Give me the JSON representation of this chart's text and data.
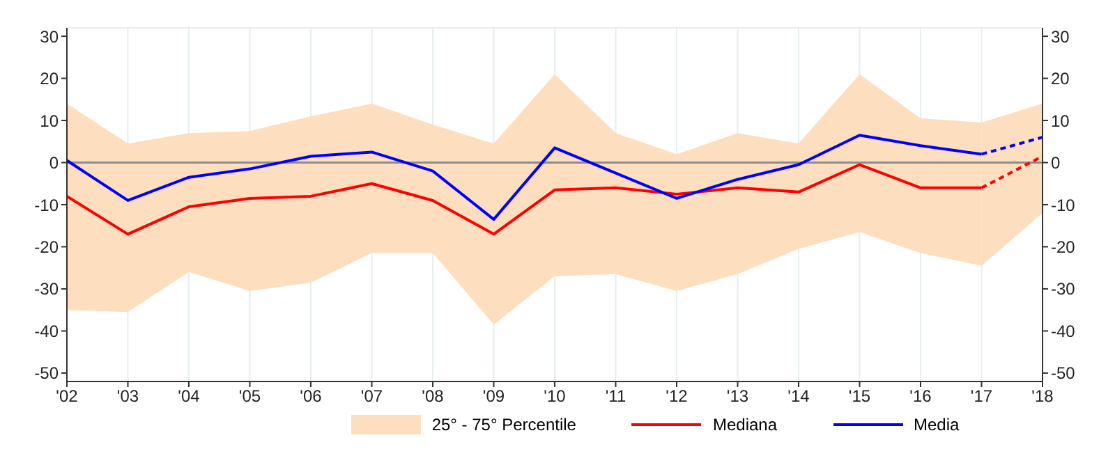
{
  "chart_data": {
    "type": "line",
    "categories": [
      "'02",
      "'03",
      "'04",
      "'05",
      "'06",
      "'07",
      "'08",
      "'09",
      "'10",
      "'11",
      "'12",
      "'13",
      "'14",
      "'15",
      "'16",
      "'17",
      "'18"
    ],
    "series": [
      {
        "name": "Mediana",
        "color": "#ff0000",
        "line_style": "solid",
        "values": [
          -8,
          -17,
          -10.5,
          -8.5,
          -8,
          -5,
          -9,
          -17,
          -6.5,
          -6,
          -7.5,
          -6,
          -7,
          -0.5,
          -6,
          -6,
          null
        ],
        "upper": [
          14,
          4.5,
          7,
          7.5,
          11,
          14,
          9,
          4.5,
          21,
          7,
          2,
          7,
          4.5,
          21,
          10.5,
          9.5,
          null
        ],
        "lower": [
          -35,
          -35.5,
          -26,
          -30.5,
          -28.5,
          -21.5,
          -21.5,
          -38.5,
          -27,
          -26.5,
          -30.5,
          -26.5,
          -20.5,
          -16.5,
          -21.5,
          -24.5,
          null
        ]
      },
      {
        "name": "Media",
        "color": "#0000ff",
        "line_style": "solid",
        "values": [
          0.5,
          -9,
          -3.5,
          -1.5,
          1.5,
          2.5,
          -2,
          -13.5,
          3.5,
          -2.5,
          -8.5,
          -4,
          -0.5,
          6.5,
          4,
          2,
          null
        ]
      },
      {
        "color": "#ff0000",
        "line_style": "dashed",
        "values": [
          null,
          null,
          null,
          null,
          null,
          null,
          null,
          null,
          null,
          null,
          null,
          null,
          null,
          null,
          null,
          -6,
          1.5
        ],
        "upper": [
          null,
          null,
          null,
          null,
          null,
          null,
          null,
          null,
          null,
          null,
          null,
          null,
          null,
          null,
          null,
          9.5,
          14
        ],
        "lower": [
          null,
          null,
          null,
          null,
          null,
          null,
          null,
          null,
          null,
          null,
          null,
          null,
          null,
          null,
          null,
          -24.5,
          -12
        ]
      },
      {
        "color": "#0000ff",
        "line_style": "dashed",
        "values": [
          null,
          null,
          null,
          null,
          null,
          null,
          null,
          null,
          null,
          null,
          null,
          null,
          null,
          null,
          null,
          2,
          6
        ]
      }
    ],
    "annotations": [
      "25° - 75° Percentile"
    ],
    "ylim": [
      -52,
      32
    ],
    "yticks": [
      -50,
      -40,
      -30,
      -20,
      -10,
      0,
      10,
      20,
      30
    ],
    "y2lim": [
      -52,
      32
    ],
    "y2ticks": [
      -50,
      -40,
      -30,
      -20,
      -10,
      0,
      10,
      20,
      30
    ],
    "ref_lines": [
      {
        "axis": "y",
        "value": 0,
        "color": "#8c8c8c"
      }
    ],
    "grid": true,
    "legend": "bottom",
    "marker": "none"
  }
}
